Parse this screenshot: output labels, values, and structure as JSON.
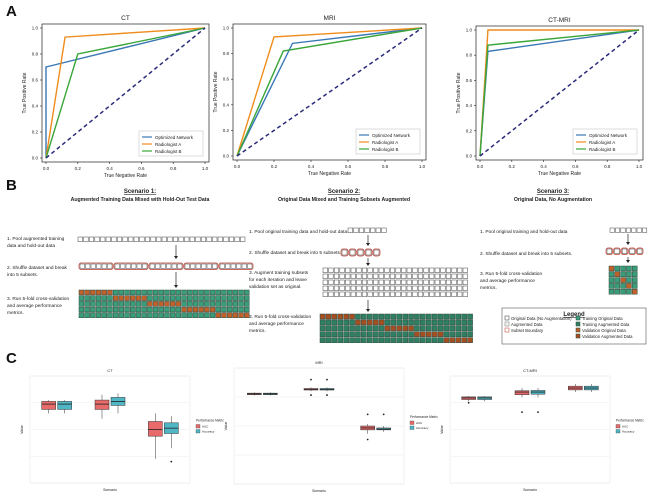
{
  "panel_labels": [
    "A",
    "B",
    "C"
  ],
  "colors": {
    "optimized_network": "#3a78b5",
    "radiologist_a": "#f08c1c",
    "radiologist_b": "#3aa63a",
    "chance": "#2a2a7a",
    "train_original": "#3a9c79",
    "train_augmented": "#2f7f63",
    "validation_original": "#c0612b",
    "validation_augmented": "#a44f21",
    "auc_box": "#e86a6a",
    "accuracy_box": "#4fb6c6"
  },
  "chart_data": [
    {
      "type": "line",
      "title": "CT",
      "xlabel": "True Negative Rate",
      "ylabel": "True Positive Rate",
      "xlim": [
        0,
        1
      ],
      "ylim": [
        0,
        1
      ],
      "xticks": [
        "0.0",
        "0.2",
        "0.4",
        "0.6",
        "0.8",
        "1.0"
      ],
      "yticks": [
        "0.0",
        "0.2",
        "0.4",
        "0.6",
        "0.8",
        "1.0"
      ],
      "legend_position": "lower-right",
      "series": [
        {
          "name": "Optimized Network",
          "x": [
            0,
            0,
            1
          ],
          "y": [
            0,
            0.7,
            1
          ]
        },
        {
          "name": "Radiologist A",
          "x": [
            0,
            0.12,
            1
          ],
          "y": [
            0,
            0.93,
            1
          ]
        },
        {
          "name": "Radiologist B",
          "x": [
            0,
            0.2,
            1
          ],
          "y": [
            0,
            0.8,
            1
          ]
        },
        {
          "name": "",
          "x": [
            0,
            1
          ],
          "y": [
            0,
            1
          ],
          "style": "dashed"
        }
      ]
    },
    {
      "type": "line",
      "title": "MRI",
      "xlabel": "True Negative Rate",
      "ylabel": "True Positive Rate",
      "xlim": [
        0,
        1
      ],
      "ylim": [
        0,
        1
      ],
      "xticks": [
        "0.0",
        "0.2",
        "0.4",
        "0.6",
        "0.8",
        "1.0"
      ],
      "yticks": [
        "0.0",
        "0.2",
        "0.4",
        "0.6",
        "0.8",
        "1.0"
      ],
      "legend_position": "lower-right",
      "series": [
        {
          "name": "Optimized Network",
          "x": [
            0,
            0.3,
            1
          ],
          "y": [
            0,
            0.88,
            1
          ]
        },
        {
          "name": "Radiologist A",
          "x": [
            0,
            0.2,
            1
          ],
          "y": [
            0,
            0.93,
            1
          ]
        },
        {
          "name": "Radiologist B",
          "x": [
            0,
            0.25,
            1
          ],
          "y": [
            0,
            0.82,
            1
          ]
        },
        {
          "name": "",
          "x": [
            0,
            1
          ],
          "y": [
            0,
            1
          ],
          "style": "dashed"
        }
      ]
    },
    {
      "type": "line",
      "title": "CT-MRI",
      "xlabel": "True Negative Rate",
      "ylabel": "True Positive Rate",
      "xlim": [
        0,
        1
      ],
      "ylim": [
        0,
        1
      ],
      "xticks": [
        "0.0",
        "0.2",
        "0.4",
        "0.6",
        "0.8",
        "1.0"
      ],
      "yticks": [
        "0.0",
        "0.2",
        "0.4",
        "0.6",
        "0.8",
        "1.0"
      ],
      "legend_position": "lower-right",
      "series": [
        {
          "name": "Optimized Network",
          "x": [
            0,
            0.05,
            1
          ],
          "y": [
            0,
            0.83,
            1
          ]
        },
        {
          "name": "Radiologist A",
          "x": [
            0,
            0.05,
            1
          ],
          "y": [
            0,
            1.0,
            1
          ]
        },
        {
          "name": "Radiologist B",
          "x": [
            0,
            0.05,
            1
          ],
          "y": [
            0,
            0.88,
            1
          ]
        },
        {
          "name": "",
          "x": [
            0,
            1
          ],
          "y": [
            0,
            1
          ],
          "style": "dashed"
        }
      ]
    },
    {
      "type": "box",
      "title": "CT",
      "xlabel": "Scenario",
      "ylabel": "Value",
      "legend_title": "Performance Metric",
      "legend_entries": [
        "AUC",
        "Accuracy"
      ],
      "ylim": [
        0.6,
        1.0
      ],
      "groups": [
        {
          "auc": {
            "min": 0.86,
            "q1": 0.875,
            "med": 0.895,
            "q3": 0.905,
            "max": 0.91,
            "outliers": []
          },
          "acc": {
            "min": 0.86,
            "q1": 0.875,
            "med": 0.895,
            "q3": 0.905,
            "max": 0.91,
            "outliers": []
          }
        },
        {
          "auc": {
            "min": 0.84,
            "q1": 0.875,
            "med": 0.895,
            "q3": 0.91,
            "max": 0.93,
            "outliers": []
          },
          "acc": {
            "min": 0.86,
            "q1": 0.89,
            "med": 0.905,
            "q3": 0.92,
            "max": 0.935,
            "outliers": []
          }
        },
        {
          "auc": {
            "min": 0.69,
            "q1": 0.775,
            "med": 0.8,
            "q3": 0.83,
            "max": 0.86,
            "outliers": []
          },
          "acc": {
            "min": 0.73,
            "q1": 0.785,
            "med": 0.805,
            "q3": 0.825,
            "max": 0.85,
            "outliers": [
              0.68
            ]
          }
        }
      ]
    },
    {
      "type": "box",
      "title": "MRI",
      "xlabel": "Scenario",
      "ylabel": "Value",
      "legend_title": "Performance Metric",
      "legend_entries": [
        "AUC",
        "Accuracy"
      ],
      "ylim": [
        0.7,
        1.0
      ],
      "groups": [
        {
          "auc": {
            "min": 0.929,
            "q1": 0.931,
            "med": 0.933,
            "q3": 0.935,
            "max": 0.937,
            "outliers": []
          },
          "acc": {
            "min": 0.929,
            "q1": 0.931,
            "med": 0.933,
            "q3": 0.935,
            "max": 0.937,
            "outliers": []
          }
        },
        {
          "auc": {
            "min": 0.94,
            "q1": 0.943,
            "med": 0.945,
            "q3": 0.947,
            "max": 0.95,
            "outliers": [
              0.97,
              0.93
            ]
          },
          "acc": {
            "min": 0.94,
            "q1": 0.943,
            "med": 0.945,
            "q3": 0.947,
            "max": 0.95,
            "outliers": [
              0.97,
              0.93
            ]
          }
        },
        {
          "auc": {
            "min": 0.83,
            "q1": 0.84,
            "med": 0.845,
            "q3": 0.85,
            "max": 0.855,
            "outliers": [
              0.88,
              0.815
            ]
          },
          "acc": {
            "min": 0.835,
            "q1": 0.84,
            "med": 0.842,
            "q3": 0.845,
            "max": 0.85,
            "outliers": [
              0.88
            ]
          }
        }
      ]
    },
    {
      "type": "box",
      "title": "CT-MRI",
      "xlabel": "Scenario",
      "ylabel": "Value",
      "legend_title": "Performance Metric",
      "legend_entries": [
        "AUC",
        "Accuracy"
      ],
      "ylim": [
        0.6,
        1.0
      ],
      "groups": [
        {
          "auc": {
            "min": 0.905,
            "q1": 0.912,
            "med": 0.918,
            "q3": 0.922,
            "max": 0.925,
            "outliers": [
              0.9
            ]
          },
          "acc": {
            "min": 0.905,
            "q1": 0.912,
            "med": 0.918,
            "q3": 0.922,
            "max": 0.925,
            "outliers": []
          }
        },
        {
          "auc": {
            "min": 0.92,
            "q1": 0.93,
            "med": 0.94,
            "q3": 0.945,
            "max": 0.955,
            "outliers": [
              0.865
            ]
          },
          "acc": {
            "min": 0.92,
            "q1": 0.932,
            "med": 0.94,
            "q3": 0.946,
            "max": 0.955,
            "outliers": [
              0.865
            ]
          }
        },
        {
          "auc": {
            "min": 0.94,
            "q1": 0.948,
            "med": 0.955,
            "q3": 0.962,
            "max": 0.97,
            "outliers": []
          },
          "acc": {
            "min": 0.94,
            "q1": 0.948,
            "med": 0.955,
            "q3": 0.962,
            "max": 0.97,
            "outliers": []
          }
        }
      ]
    }
  ],
  "scenarios": [
    {
      "title": "Scenario 1:",
      "subtitle": "Augmented Training Data Mixed with Hold-Out Test Data",
      "steps": [
        "1. Pool augmented training",
        "data and hold-out data",
        "2. Shuffle dataset and break",
        "into 5 subsets.",
        "3. Run 5-fold cross-validation",
        "and average performance",
        "metrics."
      ]
    },
    {
      "title": "Scenario 2:",
      "subtitle": "Original Data Mixed and Training Subsets Augmented",
      "steps": [
        "1. Pool original training data and hold-out data",
        "2. Shuffle dataset and break into 5 subsets.",
        "3. Augment training subsets",
        "for each iteration and leave",
        "validation set as original.",
        "3. Run 5-fold cross-validation",
        "and average performance",
        "metrics."
      ]
    },
    {
      "title": "Scenario 3:",
      "subtitle": "Original Data, No Augmentation",
      "steps": [
        "1. Pool original training and hold-out data",
        "2. Shuffle dataset and break into 5 subsets.",
        "3. Run 5-fold cross-validation",
        "and average performance",
        "metrics."
      ]
    }
  ],
  "legend_b": {
    "title": "Legend",
    "items": [
      "Original Data (No Augmentation)",
      "Augmented Data",
      "Subset Boundary",
      "Training Original Data",
      "Training Augmented Data",
      "Validation Original Data",
      "Validation Augmented Data"
    ]
  }
}
